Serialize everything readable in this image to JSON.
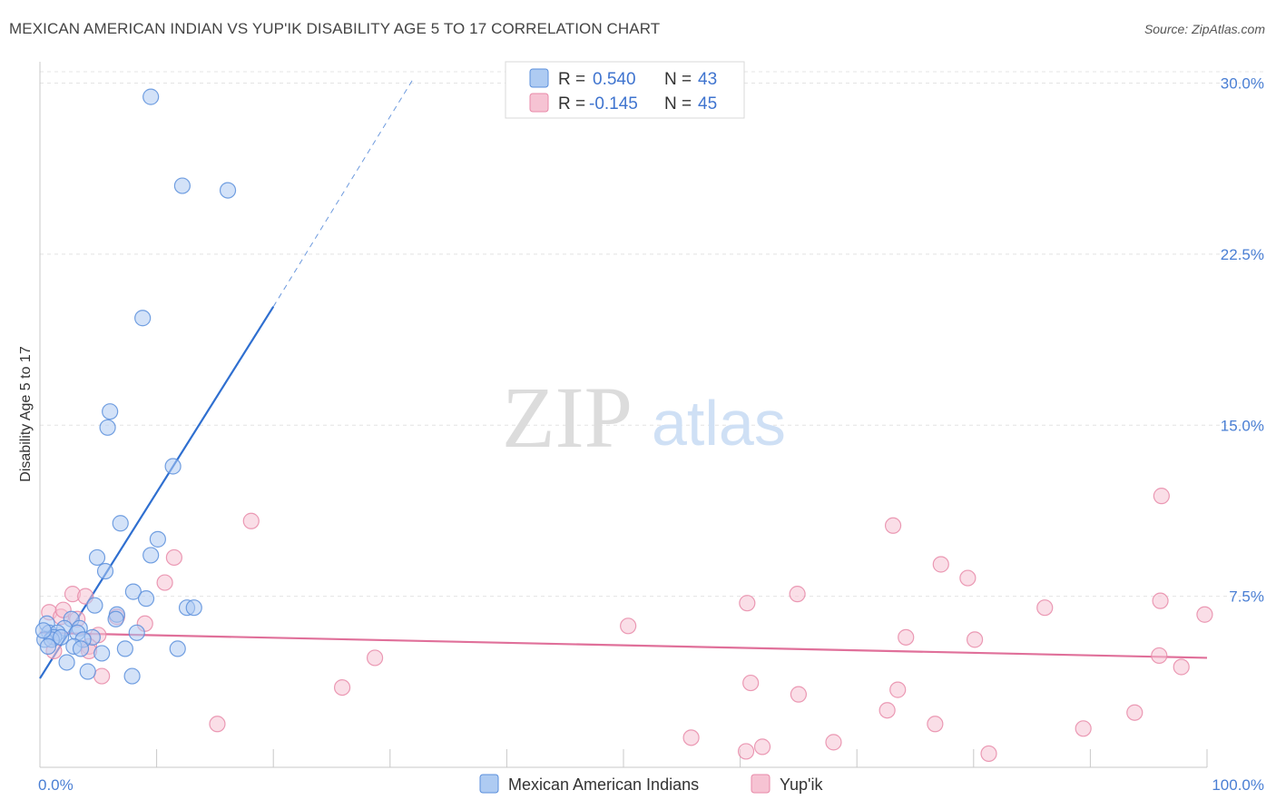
{
  "header": {
    "title": "MEXICAN AMERICAN INDIAN VS YUP'IK DISABILITY AGE 5 TO 17 CORRELATION CHART",
    "source": "Source: ZipAtlas.com"
  },
  "watermark": {
    "zip": "ZIP",
    "atlas": "atlas"
  },
  "colors": {
    "blue": "#5b8fdc",
    "blue_fill": "#aecbf2",
    "blue_line": "#2f6fd0",
    "pink": "#e88aa8",
    "pink_fill": "#f6c3d3",
    "pink_line": "#e0709a",
    "tick": "#4a7fd4",
    "grid": "#e4e4e4"
  },
  "legend": {
    "series": [
      {
        "r_label": "R =",
        "r_value": "0.540",
        "n_label": "N =",
        "n_value": "43"
      },
      {
        "r_label": "R =",
        "r_value": "-0.145",
        "n_label": "N =",
        "n_value": "45"
      }
    ]
  },
  "bottom_legend": [
    "Mexican American Indians",
    "Yup'ik"
  ],
  "chart_data": {
    "type": "scatter",
    "title": "MEXICAN AMERICAN INDIAN VS YUP'IK DISABILITY AGE 5 TO 17 CORRELATION CHART",
    "xlabel": "",
    "ylabel": "Disability Age 5 to 17",
    "xlim": [
      0,
      100
    ],
    "ylim": [
      0,
      30.5
    ],
    "x_tick_labels": [
      "0.0%",
      "100.0%"
    ],
    "y_ticks": [
      7.5,
      15.0,
      22.5,
      30.0
    ],
    "y_tick_labels": [
      "7.5%",
      "15.0%",
      "22.5%",
      "30.0%"
    ],
    "series": [
      {
        "name": "Mexican American Indians",
        "r": 0.54,
        "n": 43,
        "trend": {
          "x0": 0,
          "y0": 3.9,
          "x1": 20,
          "y1": 20.2,
          "dash_x1": 32,
          "dash_y1": 30.2
        },
        "points": [
          [
            9.5,
            29.4
          ],
          [
            12.2,
            25.5
          ],
          [
            16.1,
            25.3
          ],
          [
            8.8,
            19.7
          ],
          [
            6.0,
            15.6
          ],
          [
            5.8,
            14.9
          ],
          [
            11.4,
            13.2
          ],
          [
            6.9,
            10.7
          ],
          [
            10.1,
            10.0
          ],
          [
            9.5,
            9.3
          ],
          [
            4.9,
            9.2
          ],
          [
            5.6,
            8.6
          ],
          [
            8.0,
            7.7
          ],
          [
            9.1,
            7.4
          ],
          [
            4.7,
            7.1
          ],
          [
            12.6,
            7.0
          ],
          [
            13.2,
            7.0
          ],
          [
            6.6,
            6.7
          ],
          [
            6.5,
            6.5
          ],
          [
            2.7,
            6.5
          ],
          [
            0.6,
            6.3
          ],
          [
            3.4,
            6.1
          ],
          [
            2.1,
            6.1
          ],
          [
            0.8,
            5.9
          ],
          [
            1.5,
            5.9
          ],
          [
            3.2,
            5.9
          ],
          [
            8.3,
            5.9
          ],
          [
            1.2,
            5.7
          ],
          [
            4.5,
            5.7
          ],
          [
            0.4,
            5.6
          ],
          [
            1.0,
            5.6
          ],
          [
            3.7,
            5.6
          ],
          [
            0.7,
            5.3
          ],
          [
            2.9,
            5.3
          ],
          [
            3.5,
            5.2
          ],
          [
            7.3,
            5.2
          ],
          [
            11.8,
            5.2
          ],
          [
            5.3,
            5.0
          ],
          [
            2.3,
            4.6
          ],
          [
            4.1,
            4.2
          ],
          [
            7.9,
            4.0
          ],
          [
            0.3,
            6.0
          ],
          [
            1.8,
            5.7
          ]
        ]
      },
      {
        "name": "Yup'ik",
        "r": -0.145,
        "n": 45,
        "trend": {
          "x0": 0,
          "y0": 5.9,
          "x1": 100,
          "y1": 4.8
        },
        "points": [
          [
            96.1,
            11.9
          ],
          [
            18.1,
            10.8
          ],
          [
            73.1,
            10.6
          ],
          [
            11.5,
            9.2
          ],
          [
            77.2,
            8.9
          ],
          [
            79.5,
            8.3
          ],
          [
            10.7,
            8.1
          ],
          [
            2.8,
            7.6
          ],
          [
            3.9,
            7.5
          ],
          [
            64.9,
            7.6
          ],
          [
            96.0,
            7.3
          ],
          [
            60.6,
            7.2
          ],
          [
            86.1,
            7.0
          ],
          [
            0.8,
            6.8
          ],
          [
            99.8,
            6.7
          ],
          [
            1.8,
            6.6
          ],
          [
            6.6,
            6.6
          ],
          [
            3.2,
            6.5
          ],
          [
            9.0,
            6.3
          ],
          [
            50.4,
            6.2
          ],
          [
            5.0,
            5.8
          ],
          [
            74.2,
            5.7
          ],
          [
            80.1,
            5.6
          ],
          [
            4.2,
            5.3
          ],
          [
            1.2,
            5.1
          ],
          [
            4.2,
            5.1
          ],
          [
            28.7,
            4.8
          ],
          [
            95.9,
            4.9
          ],
          [
            97.8,
            4.4
          ],
          [
            5.3,
            4.0
          ],
          [
            60.9,
            3.7
          ],
          [
            25.9,
            3.5
          ],
          [
            73.5,
            3.4
          ],
          [
            65.0,
            3.2
          ],
          [
            72.6,
            2.5
          ],
          [
            93.8,
            2.4
          ],
          [
            15.2,
            1.9
          ],
          [
            76.7,
            1.9
          ],
          [
            89.4,
            1.7
          ],
          [
            55.8,
            1.3
          ],
          [
            68.0,
            1.1
          ],
          [
            61.9,
            0.9
          ],
          [
            60.5,
            0.7
          ],
          [
            81.3,
            0.6
          ],
          [
            2.0,
            6.9
          ]
        ]
      }
    ]
  }
}
